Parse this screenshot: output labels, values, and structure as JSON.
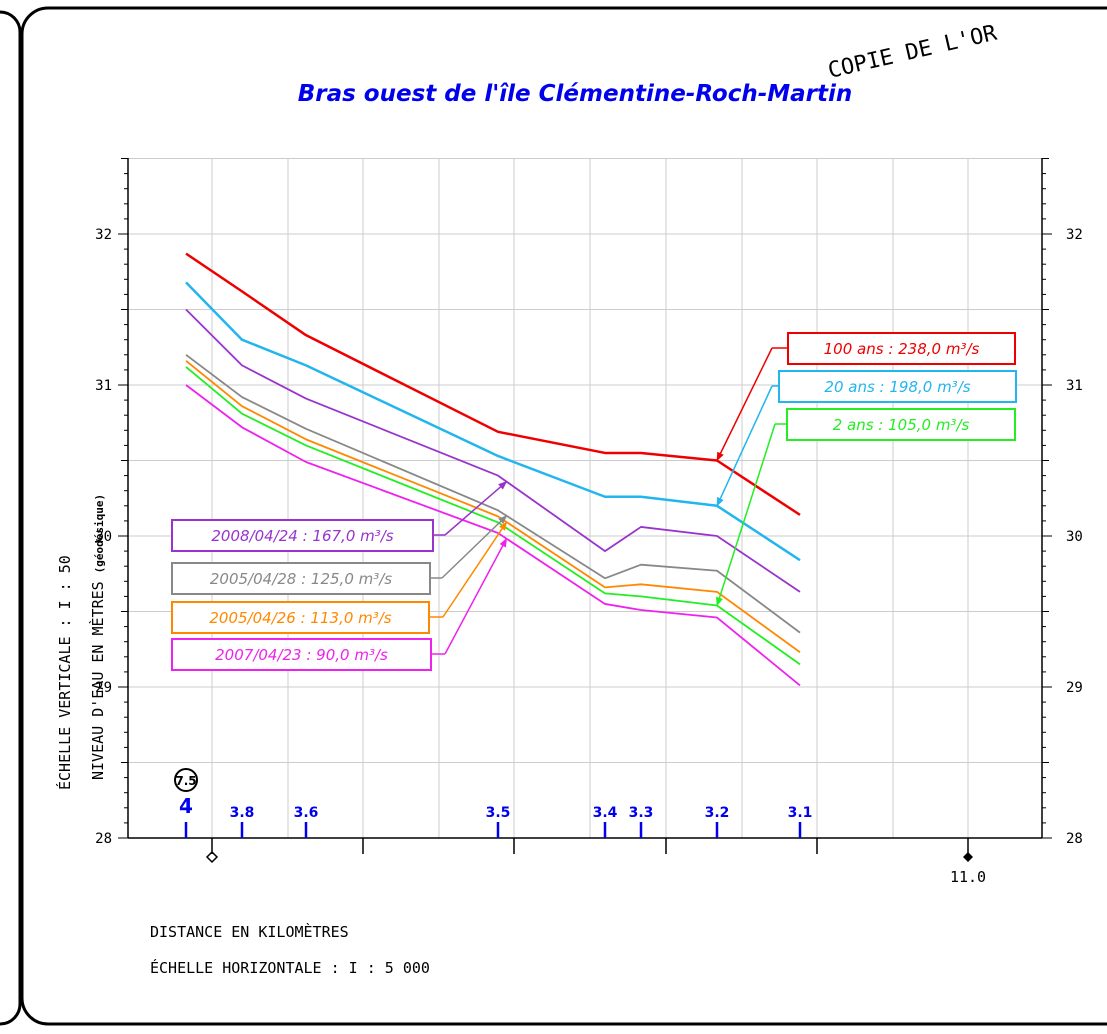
{
  "stamp": "COPIE DE L'OR",
  "colors": {
    "title": "#0000ee",
    "km": "#0000ee",
    "grid": "#cccccc",
    "frame": "#000000"
  },
  "chart_data": {
    "type": "line",
    "title": "Bras ouest de l'île Clémentine-Roch-Martin",
    "ylabel": "NIVEAU D'EAU EN MÈTRES",
    "ylabel_sub": "(géodésique)",
    "vertical_scale": "ÉCHELLE VERTICALE : I : 50",
    "xlabel": "DISTANCE EN KILOMÈTRES",
    "horizontal_scale": "ÉCHELLE HORIZONTALE : I : 5 000",
    "ylim": [
      28,
      32.5
    ],
    "y_ticks": [
      "28",
      "29",
      "30",
      "31",
      "32"
    ],
    "km_markers": [
      "4",
      "3.8",
      "3.6",
      "3.5",
      "3.4",
      "3.3",
      "3.2",
      "3.1"
    ],
    "circle_label": "7.5",
    "chainage_label": "11.0",
    "series": [
      {
        "name": "100 ans : 238,0 m³/s",
        "color": "#ee0000",
        "values": [
          31.87,
          31.62,
          31.33,
          30.69,
          30.55,
          30.55,
          30.5,
          30.14
        ]
      },
      {
        "name": "20 ans : 198,0 m³/s",
        "color": "#22b5ee",
        "values": [
          31.68,
          31.3,
          31.13,
          30.53,
          30.26,
          30.26,
          30.2,
          29.84
        ]
      },
      {
        "name": "2008/04/24 : 167,0 m³/s",
        "color": "#9933cc",
        "values": [
          31.5,
          31.13,
          30.91,
          30.4,
          29.9,
          30.06,
          30.0,
          29.63
        ]
      },
      {
        "name": "2005/04/28 : 125,0 m³/s",
        "color": "#888888",
        "values": [
          31.2,
          30.92,
          30.71,
          30.17,
          29.72,
          29.81,
          29.77,
          29.36
        ]
      },
      {
        "name": "2005/04/26 : 113,0 m³/s",
        "color": "#ff8800",
        "values": [
          31.16,
          30.86,
          30.64,
          30.13,
          29.66,
          29.68,
          29.63,
          29.23
        ]
      },
      {
        "name": "2 ans : 105,0 m³/s",
        "color": "#22ee22",
        "values": [
          31.12,
          30.81,
          30.6,
          30.09,
          29.62,
          29.6,
          29.54,
          29.15
        ]
      },
      {
        "name": "2007/04/23 : 90,0 m³/s",
        "color": "#ee22ee",
        "values": [
          31.0,
          30.72,
          30.49,
          30.02,
          29.55,
          29.51,
          29.46,
          29.01
        ]
      }
    ]
  }
}
